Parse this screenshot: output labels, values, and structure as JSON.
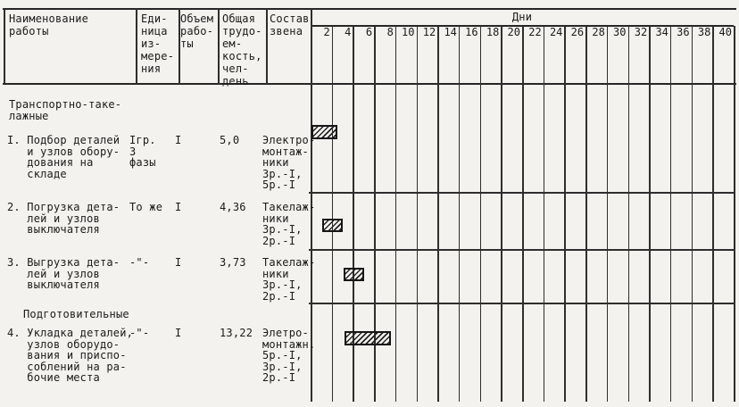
{
  "paper": {
    "background": "#f3f2ee",
    "ink": "#1b1b1b"
  },
  "header": {
    "col_name": "Наименование\nработы",
    "col_unit": "Еди-\nница\nиз-\nмере-\nния",
    "col_volume": "Объем\nрабо-\nты",
    "col_labor": "Общая\nтрудо-\nем-\nкость,\nчел-\nдень",
    "col_team": "Состав\nзвена",
    "days_title": "Дни",
    "day_ticks": [
      2,
      4,
      6,
      8,
      10,
      12,
      14,
      16,
      18,
      20,
      22,
      24,
      26,
      28,
      30,
      32,
      34,
      36,
      38,
      40
    ]
  },
  "body": {
    "section1": "Транспортно-таке-\nлажные",
    "section2": "Подготовительные",
    "rows": [
      {
        "name": "I. Подбор деталей\n   и узлов обору-\n   дования на\n   складе",
        "unit": "Iгр.\n3\nфазы",
        "volume": "I",
        "labor": "5,0",
        "team": "Электро-\nмонтаж-\nники\n3р.-I,\n5р.-I",
        "bar": {
          "start_day": 0.05,
          "duration_days": 2.5
        }
      },
      {
        "name": "2. Погрузка дета-\n   лей и узлов\n   выключателя",
        "unit": "То же",
        "volume": "I",
        "labor": "4,36",
        "team": "Такелаж-\nники\n3р.-I,\n2р.-I",
        "bar": {
          "start_day": 1.1,
          "duration_days": 1.9
        }
      },
      {
        "name": "3. Выгрузка дета-\n   лей и узлов\n   выключателя",
        "unit": "-\"-",
        "volume": "I",
        "labor": "3,73",
        "team": "Такелаж-\nники\n3р.-I,\n2р.-I",
        "bar": {
          "start_day": 3.1,
          "duration_days": 1.95
        }
      },
      {
        "name": "4. Укладка деталей,\n   узлов оборудо-\n   вания и приспо-\n   соблений на ра-\n   бочие места",
        "unit": "-\"-",
        "volume": "I",
        "labor": "13,22",
        "team": "Элетро-\nмонтажн.\n5р.-I,\n3р.-I,\n2р.-I",
        "bar": {
          "start_day": 3.2,
          "duration_days": 4.4
        }
      }
    ]
  }
}
